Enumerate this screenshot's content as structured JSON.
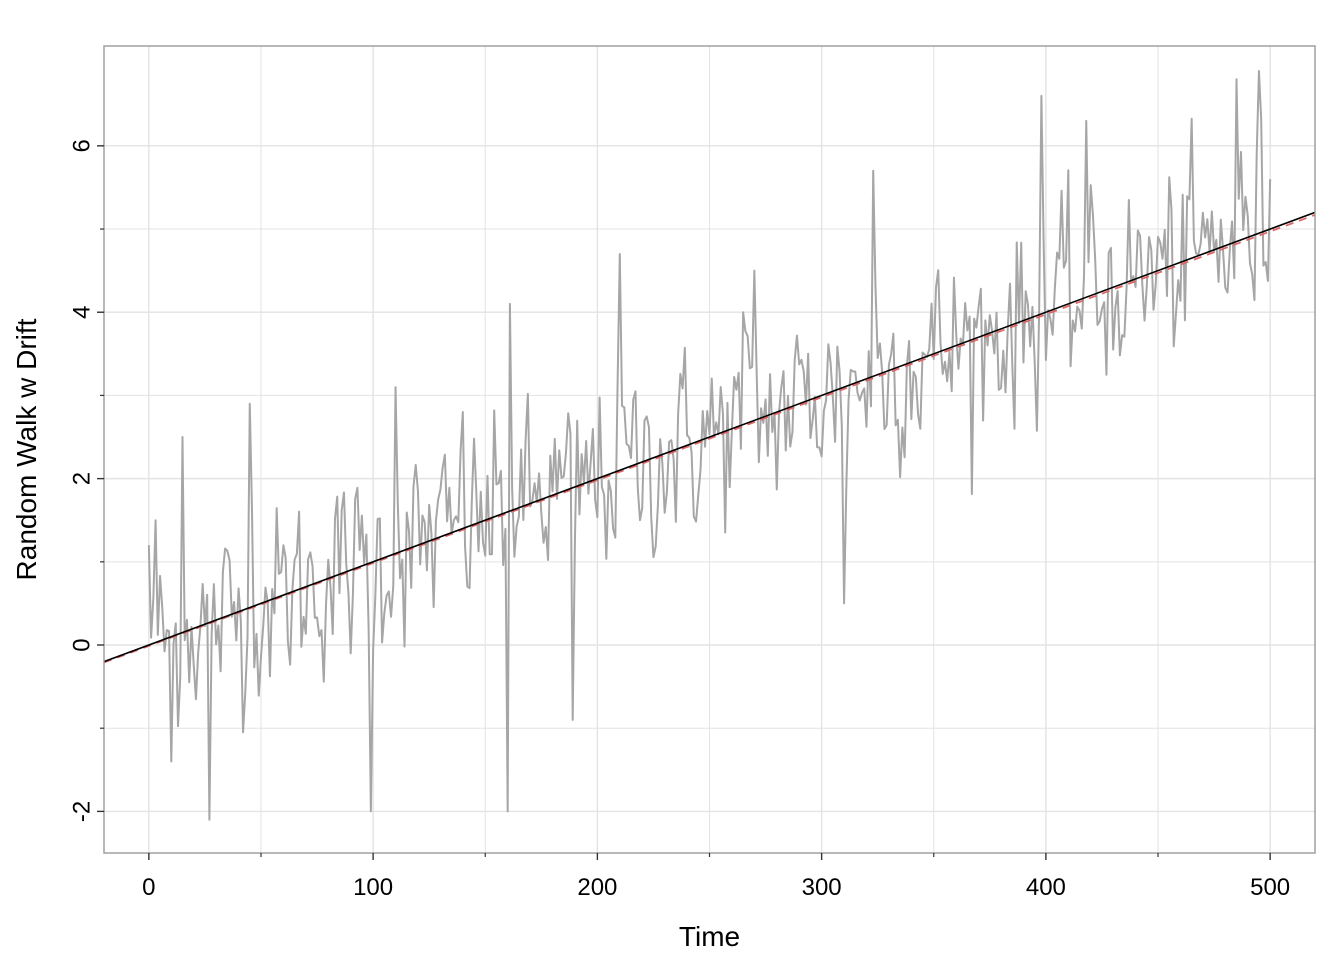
{
  "chart_data": {
    "type": "line",
    "title": "",
    "xlabel": "Time",
    "ylabel": "Random Walk w Drift",
    "xlim": [
      -20,
      520
    ],
    "ylim": [
      -2.5,
      7.2
    ],
    "x_ticks": [
      0,
      100,
      200,
      300,
      400,
      500
    ],
    "x_tick_labels": [
      "0",
      "100",
      "200",
      "300",
      "400",
      "500"
    ],
    "y_ticks": [
      -2,
      0,
      2,
      4,
      6
    ],
    "y_tick_labels": [
      "-2",
      "0",
      "2",
      "4",
      "6"
    ],
    "grid": true,
    "legend": "none",
    "colors": {
      "series": "#a6a6a6",
      "trend": "#000000",
      "fitted": "#e06666",
      "grid": "#e3e3e3",
      "panel_border": "#999999"
    },
    "series": [
      {
        "style": "solid-gray",
        "n": 500,
        "mean_intercept": 0.0,
        "mean_slope": 0.01,
        "noise_sd": 1.0,
        "description_points": [
          [
            0,
            1.2
          ],
          [
            3,
            1.5
          ],
          [
            10,
            -1.4
          ],
          [
            15,
            2.5
          ],
          [
            27,
            -2.1
          ],
          [
            45,
            2.9
          ],
          [
            99,
            -2.0
          ],
          [
            110,
            3.1
          ],
          [
            140,
            2.8
          ],
          [
            160,
            -2.0
          ],
          [
            161,
            4.1
          ],
          [
            189,
            -0.9
          ],
          [
            210,
            4.7
          ],
          [
            265,
            4.0
          ],
          [
            270,
            4.5
          ],
          [
            310,
            0.5
          ],
          [
            323,
            5.7
          ],
          [
            398,
            6.6
          ],
          [
            418,
            6.3
          ],
          [
            485,
            6.8
          ],
          [
            495,
            6.9
          ],
          [
            500,
            5.6
          ]
        ]
      },
      {
        "style": "solid-black",
        "x": [
          -20,
          520
        ],
        "y": [
          -0.2,
          5.2
        ]
      },
      {
        "style": "dashed-red",
        "x": [
          -20,
          520
        ],
        "y": [
          -0.21,
          5.17
        ]
      }
    ]
  }
}
